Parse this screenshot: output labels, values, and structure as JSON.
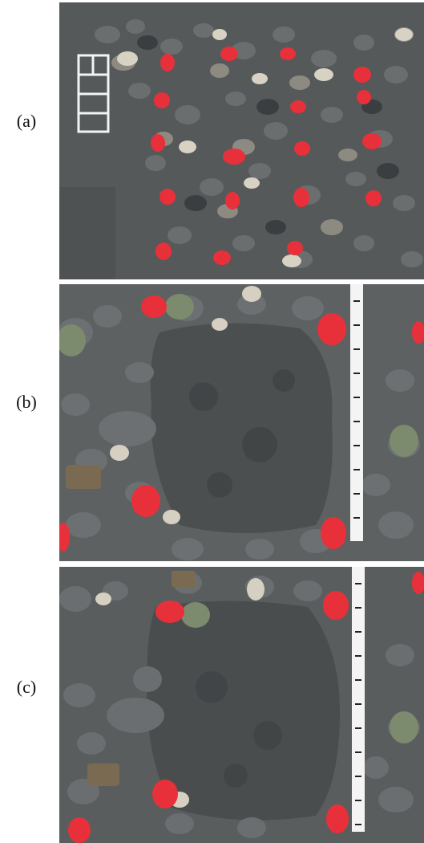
{
  "figure": {
    "panels": [
      {
        "label": "(a)",
        "photo_name": "photo-a"
      },
      {
        "label": "(b)",
        "photo_name": "photo-b"
      },
      {
        "label": "(c)",
        "photo_name": "photo-c"
      }
    ]
  },
  "colors": {
    "sand": "#55595a",
    "sand_dark": "#45494a",
    "painted_stone": "#e8303a",
    "scale_bar": "#f4f4f4"
  }
}
